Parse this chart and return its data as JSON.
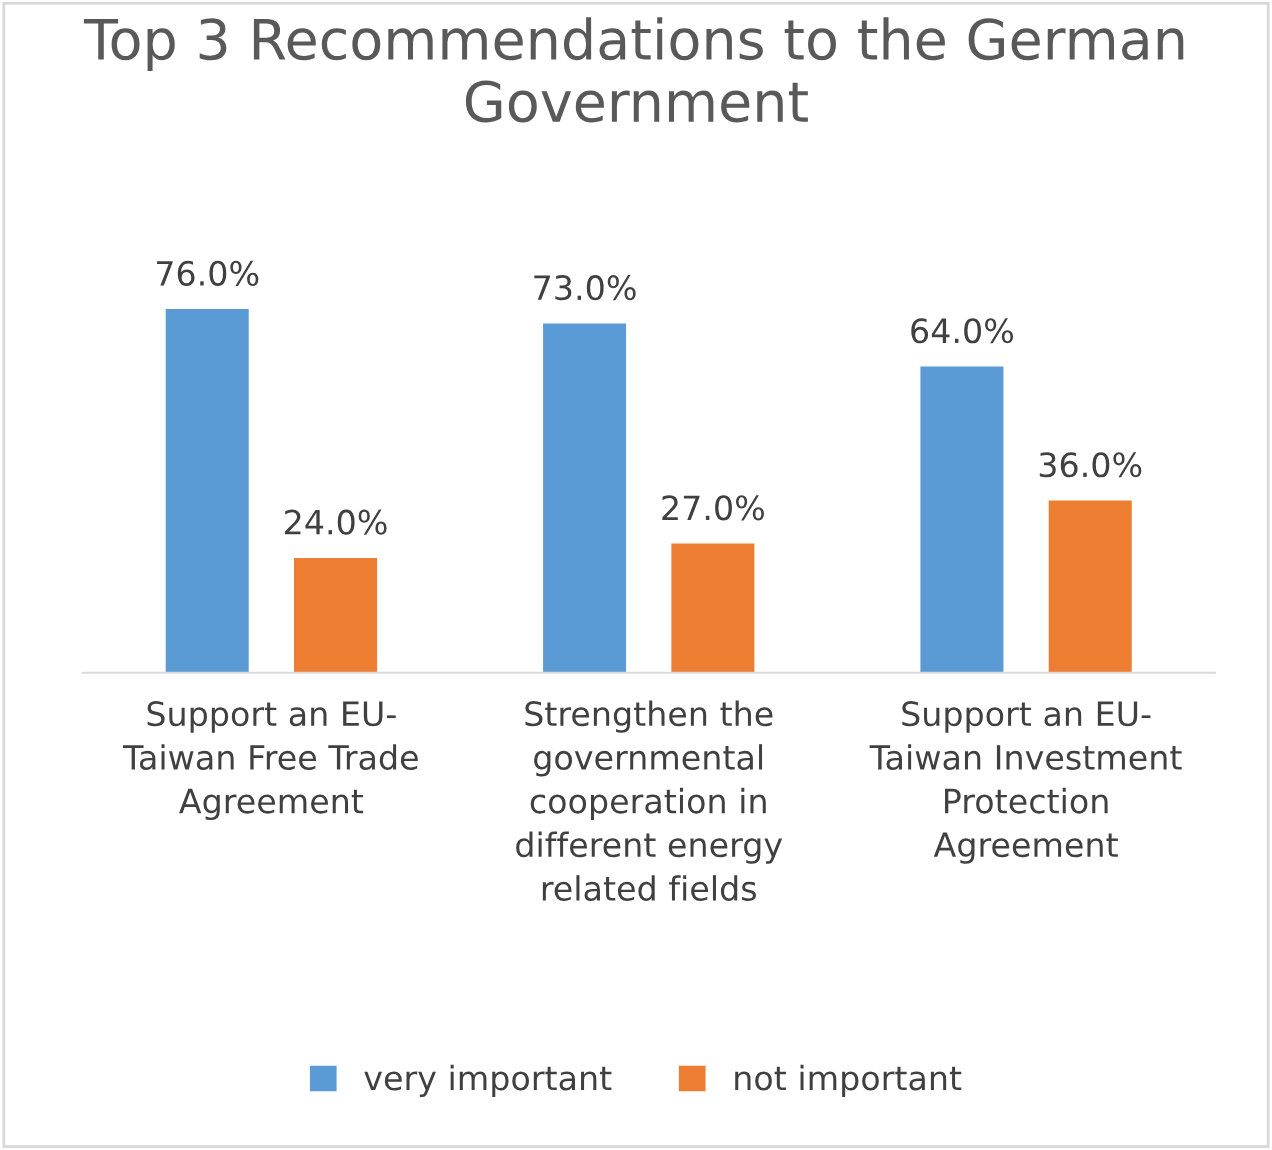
{
  "chart_data": {
    "type": "bar",
    "title": "Top 3 Recommendations to the German Government",
    "categories": [
      "Support an EU-\nTaiwan Free Trade\nAgreement",
      "Strengthen the\ngovernmental\ncooperation in\ndifferent energy\nrelated fields",
      "Support an EU-\nTaiwan Investment\nProtection\nAgreement"
    ],
    "series": [
      {
        "name": "very important",
        "color": "#5b9bd5",
        "values": [
          76.0,
          73.0,
          64.0
        ],
        "value_labels": [
          "76.0%",
          "73.0%",
          "64.0%"
        ]
      },
      {
        "name": "not important",
        "color": "#ed7d31",
        "values": [
          24.0,
          27.0,
          36.0
        ],
        "value_labels": [
          "24.0%",
          "27.0%",
          "36.0%"
        ]
      }
    ],
    "legend": "bottom",
    "grid": false
  }
}
